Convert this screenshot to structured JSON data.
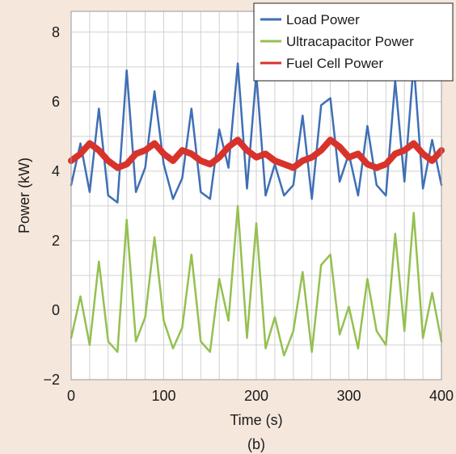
{
  "chart_data": {
    "type": "line",
    "title": "",
    "xlabel": "Time (s)",
    "ylabel": "Power (kW)",
    "caption": "(b)",
    "xlim": [
      0,
      400
    ],
    "ylim": [
      -2,
      8.6
    ],
    "xticks": [
      0,
      100,
      200,
      300,
      400
    ],
    "xtick_labels": [
      "0",
      "100",
      "200",
      "300",
      "400"
    ],
    "yticks": [
      -2,
      0,
      2,
      4,
      6,
      8
    ],
    "ytick_labels": [
      "−2",
      "0",
      "2",
      "4",
      "6",
      "8"
    ],
    "grid": true,
    "legend_position": "top-right",
    "series": [
      {
        "name": "Load Power",
        "color": "#3f6fb5",
        "x": [
          0,
          10,
          20,
          30,
          40,
          50,
          60,
          70,
          80,
          90,
          100,
          110,
          120,
          130,
          140,
          150,
          160,
          170,
          180,
          190,
          200,
          210,
          220,
          230,
          240,
          250,
          260,
          270,
          280,
          290,
          300,
          310,
          320,
          330,
          340,
          350,
          360,
          370,
          380,
          390,
          400
        ],
        "y": [
          3.6,
          4.8,
          3.4,
          5.8,
          3.3,
          3.1,
          6.9,
          3.4,
          4.1,
          6.3,
          4.2,
          3.2,
          3.8,
          5.8,
          3.4,
          3.2,
          5.2,
          4.1,
          7.1,
          3.5,
          6.8,
          3.3,
          4.2,
          3.3,
          3.6,
          5.6,
          3.2,
          5.9,
          6.1,
          3.7,
          4.5,
          3.3,
          5.3,
          3.6,
          3.3,
          6.6,
          3.7,
          7.1,
          3.5,
          4.9,
          3.6
        ]
      },
      {
        "name": "Ultracapacitor Power",
        "color": "#94c050",
        "x": [
          0,
          10,
          20,
          30,
          40,
          50,
          60,
          70,
          80,
          90,
          100,
          110,
          120,
          130,
          140,
          150,
          160,
          170,
          180,
          190,
          200,
          210,
          220,
          230,
          240,
          250,
          260,
          270,
          280,
          290,
          300,
          310,
          320,
          330,
          340,
          350,
          360,
          370,
          380,
          390,
          400
        ],
        "y": [
          -0.8,
          0.4,
          -1.0,
          1.4,
          -0.9,
          -1.2,
          2.6,
          -0.9,
          -0.2,
          2.1,
          -0.3,
          -1.1,
          -0.5,
          1.6,
          -0.9,
          -1.2,
          0.9,
          -0.3,
          3.0,
          -0.8,
          2.5,
          -1.1,
          -0.2,
          -1.3,
          -0.6,
          1.1,
          -1.2,
          1.3,
          1.6,
          -0.7,
          0.1,
          -1.1,
          0.9,
          -0.6,
          -1.0,
          2.2,
          -0.6,
          2.8,
          -0.8,
          0.5,
          -0.9
        ]
      },
      {
        "name": "Fuel Cell Power",
        "color": "#d8332b",
        "x": [
          0,
          10,
          20,
          30,
          40,
          50,
          60,
          70,
          80,
          90,
          100,
          110,
          120,
          130,
          140,
          150,
          160,
          170,
          180,
          190,
          200,
          210,
          220,
          230,
          240,
          250,
          260,
          270,
          280,
          290,
          300,
          310,
          320,
          330,
          340,
          350,
          360,
          370,
          380,
          390,
          400
        ],
        "y": [
          4.3,
          4.5,
          4.8,
          4.6,
          4.3,
          4.1,
          4.2,
          4.5,
          4.6,
          4.8,
          4.5,
          4.3,
          4.6,
          4.5,
          4.3,
          4.2,
          4.4,
          4.7,
          4.9,
          4.6,
          4.4,
          4.5,
          4.3,
          4.2,
          4.1,
          4.3,
          4.4,
          4.6,
          4.9,
          4.7,
          4.4,
          4.5,
          4.2,
          4.1,
          4.2,
          4.5,
          4.6,
          4.8,
          4.5,
          4.3,
          4.6
        ]
      }
    ]
  }
}
